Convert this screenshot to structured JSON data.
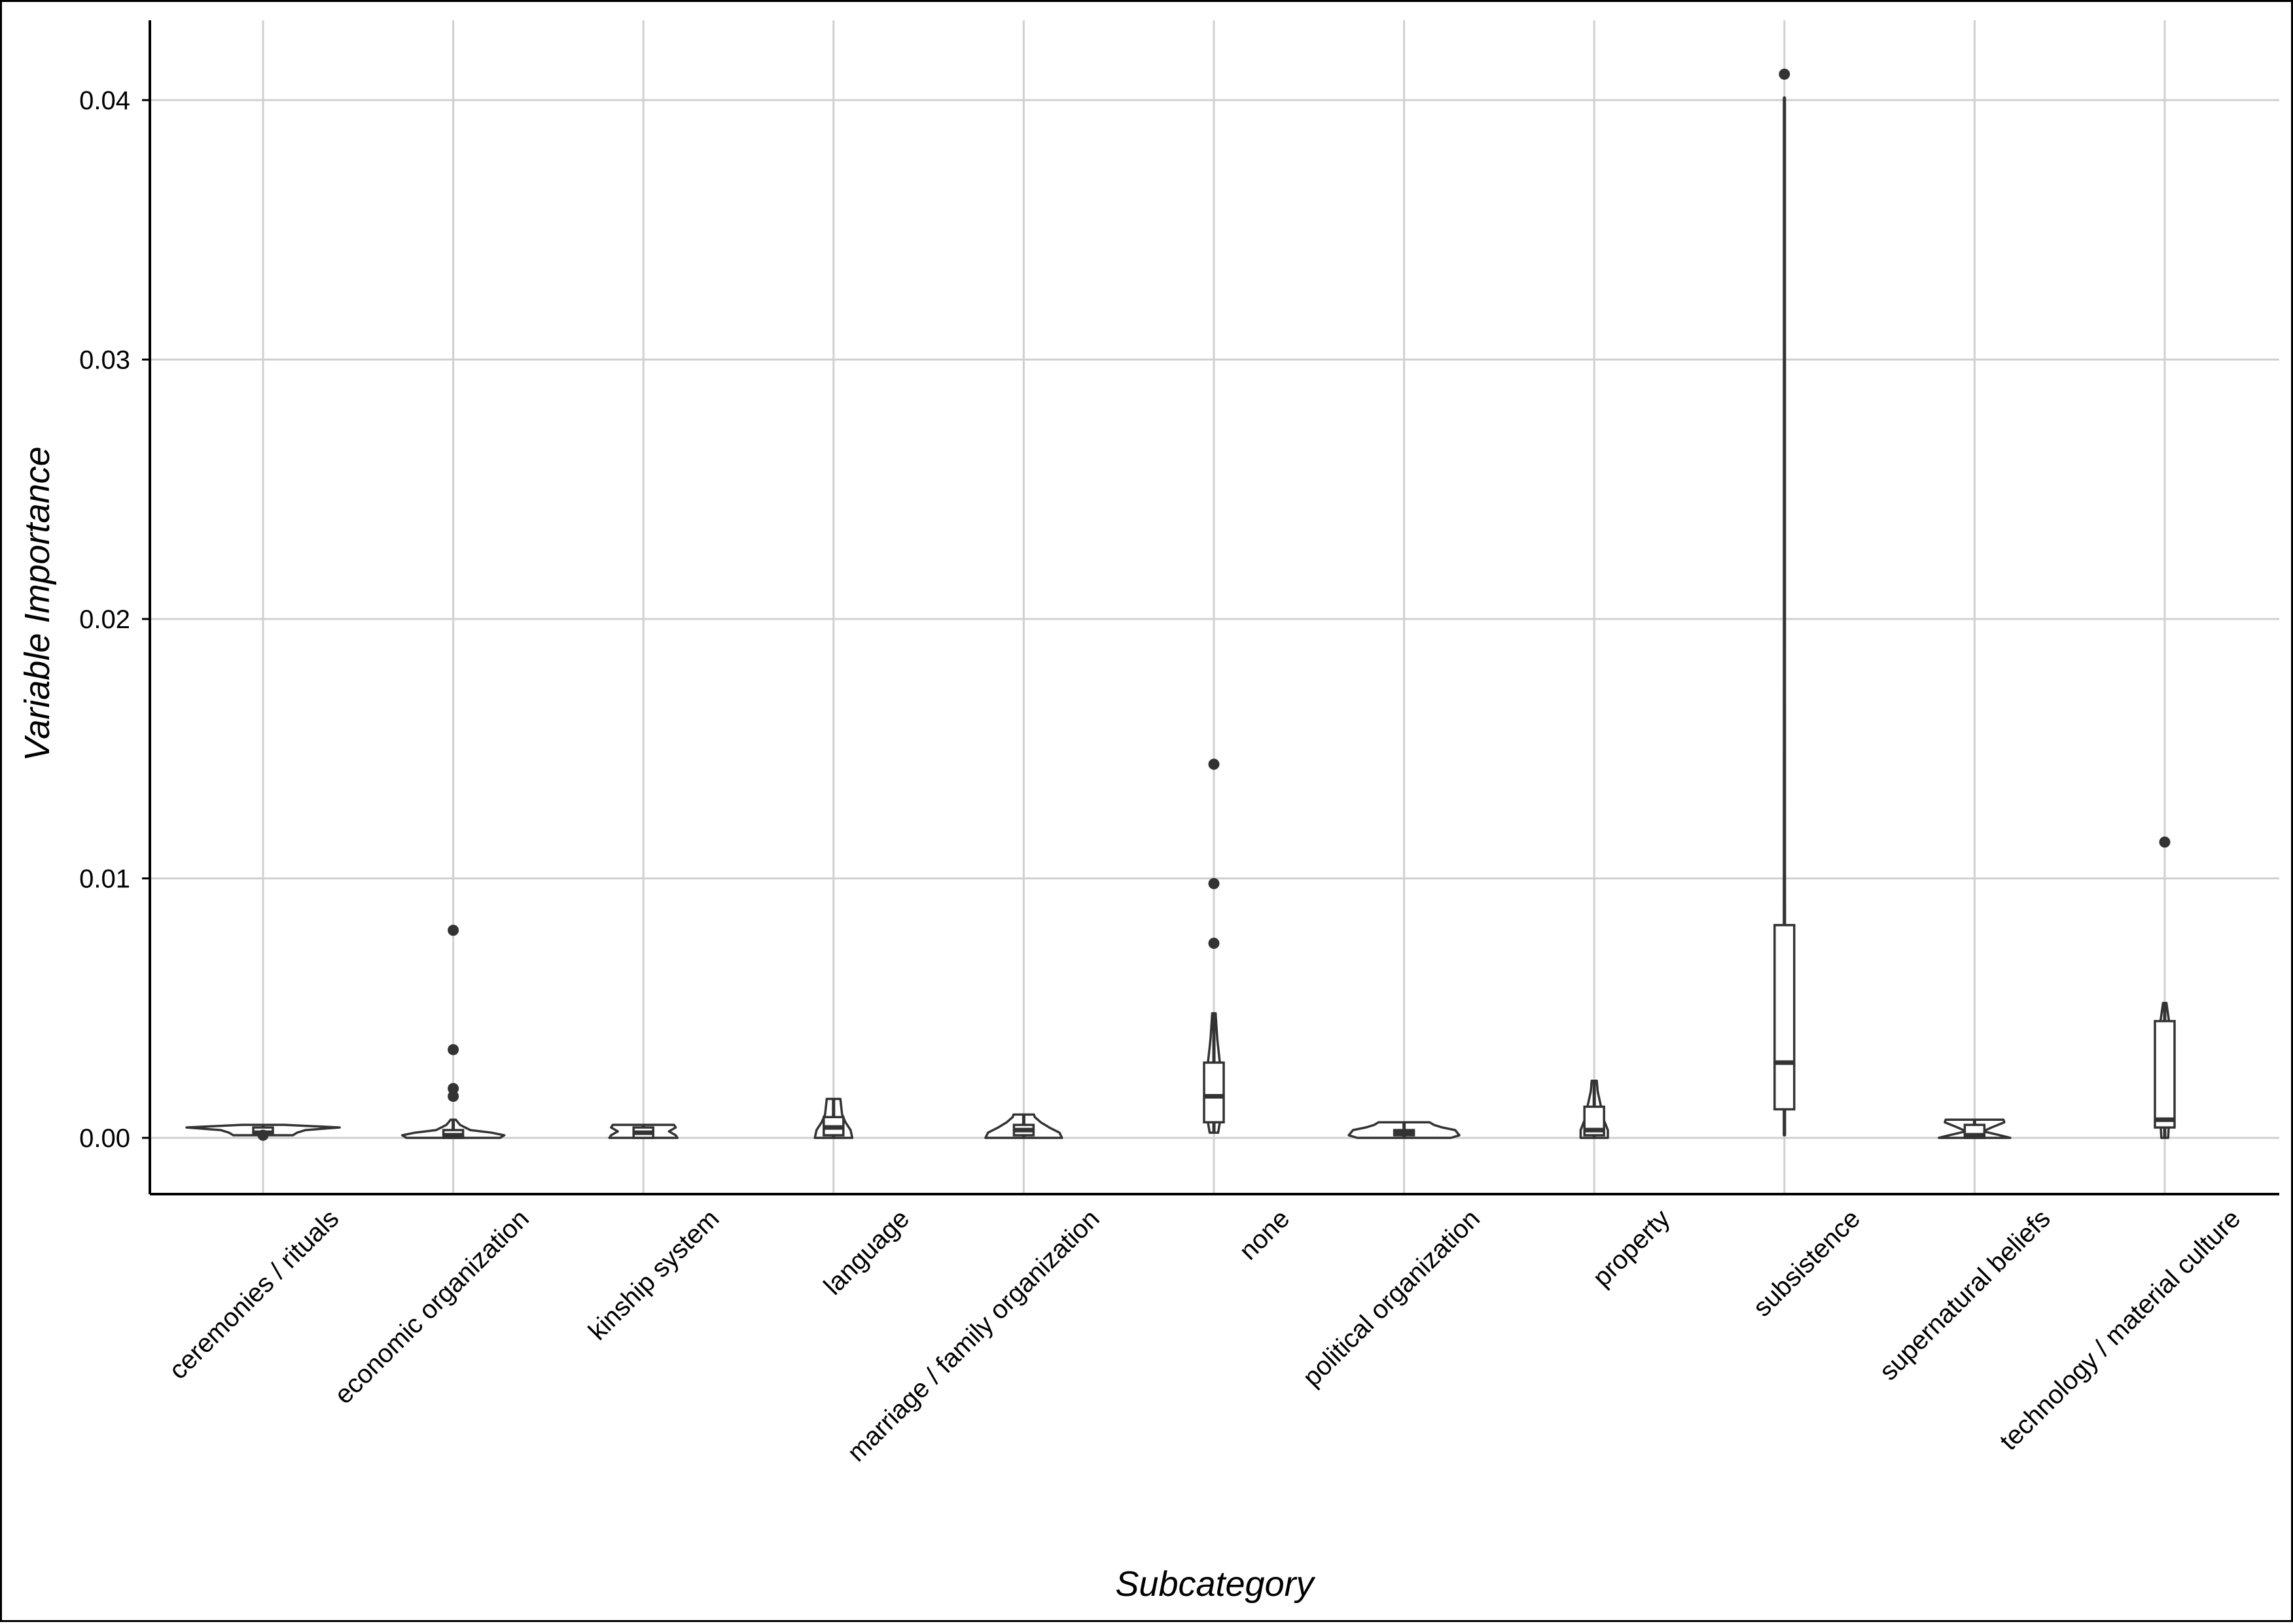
{
  "chart_data": {
    "type": "violin",
    "title": "",
    "xlabel": "Subcategory",
    "ylabel": "Variable Importance",
    "ylim": [
      -0.0021,
      0.0431
    ],
    "yticks": [
      0.0,
      0.01,
      0.02,
      0.03,
      0.04
    ],
    "ytick_labels": [
      "0.00",
      "0.01",
      "0.02",
      "0.03",
      "0.04"
    ],
    "grid": true,
    "legend": "none",
    "colors": {
      "line": "#333333",
      "grid": "#d0d0d0",
      "axis": "#000000",
      "fill": "#ffffff"
    },
    "categories": [
      "ceremonies / rituals",
      "economic organization",
      "kinship system",
      "language",
      "marriage / family organization",
      "none",
      "political organization",
      "property",
      "subsistence",
      "supernatural beliefs",
      "technology / material culture"
    ],
    "series": [
      {
        "category": "ceremonies / rituals",
        "min": 0.0001,
        "q1": 0.00015,
        "median": 0.0002,
        "q3": 0.0004,
        "max": 0.0005,
        "outliers": [
          0.0001
        ],
        "violin": [
          [
            0.0001,
            0.35
          ],
          [
            0.0002,
            0.4
          ],
          [
            0.0003,
            0.5
          ],
          [
            0.0004,
            0.9
          ],
          [
            0.0005,
            0.25
          ]
        ]
      },
      {
        "category": "economic organization",
        "min": 0.0,
        "q1": 0.0,
        "median": 0.0001,
        "q3": 0.0003,
        "max": 0.0007,
        "outliers": [
          0.0016,
          0.0019,
          0.0034,
          0.008
        ],
        "violin": [
          [
            0.0,
            0.55
          ],
          [
            0.0001,
            0.6
          ],
          [
            0.0002,
            0.45
          ],
          [
            0.0003,
            0.2
          ],
          [
            0.0005,
            0.08
          ],
          [
            0.0007,
            0.03
          ]
        ]
      },
      {
        "category": "kinship system",
        "min": 0.0,
        "q1": 0.0,
        "median": 0.0002,
        "q3": 0.0004,
        "max": 0.0005,
        "outliers": [],
        "violin": [
          [
            0.0,
            0.4
          ],
          [
            0.0001,
            0.38
          ],
          [
            0.00025,
            0.3
          ],
          [
            0.0004,
            0.38
          ],
          [
            0.0005,
            0.36
          ]
        ]
      },
      {
        "category": "language",
        "min": 0.0,
        "q1": 0.0001,
        "median": 0.0004,
        "q3": 0.0008,
        "max": 0.0015,
        "outliers": [],
        "violin": [
          [
            0.0,
            0.22
          ],
          [
            0.0003,
            0.2
          ],
          [
            0.0006,
            0.14
          ],
          [
            0.0009,
            0.1
          ],
          [
            0.0012,
            0.09
          ],
          [
            0.0015,
            0.08
          ]
        ]
      },
      {
        "category": "marriage / family organization",
        "min": 0.0,
        "q1": 0.0001,
        "median": 0.0003,
        "q3": 0.0005,
        "max": 0.0009,
        "outliers": [],
        "violin": [
          [
            0.0,
            0.45
          ],
          [
            0.0002,
            0.42
          ],
          [
            0.0004,
            0.3
          ],
          [
            0.0006,
            0.2
          ],
          [
            0.0008,
            0.13
          ],
          [
            0.0009,
            0.12
          ]
        ]
      },
      {
        "category": "none",
        "min": 0.0002,
        "q1": 0.0006,
        "median": 0.0016,
        "q3": 0.0029,
        "max": 0.0048,
        "outliers": [
          0.0075,
          0.0098,
          0.0144
        ],
        "violin": [
          [
            0.0002,
            0.05
          ],
          [
            0.0006,
            0.07
          ],
          [
            0.0012,
            0.09
          ],
          [
            0.002,
            0.09
          ],
          [
            0.0029,
            0.07
          ],
          [
            0.0038,
            0.04
          ],
          [
            0.0048,
            0.02
          ]
        ]
      },
      {
        "category": "political organization",
        "min": 0.0,
        "q1": 0.0001,
        "median": 0.0002,
        "q3": 0.0003,
        "max": 0.0006,
        "outliers": [],
        "violin": [
          [
            0.0,
            0.55
          ],
          [
            0.0001,
            0.65
          ],
          [
            0.0003,
            0.6
          ],
          [
            0.0004,
            0.45
          ],
          [
            0.0005,
            0.35
          ],
          [
            0.0006,
            0.3
          ]
        ]
      },
      {
        "category": "property",
        "min": 0.0,
        "q1": 0.0001,
        "median": 0.0003,
        "q3": 0.0012,
        "max": 0.0022,
        "outliers": [],
        "violin": [
          [
            0.0,
            0.16
          ],
          [
            0.0003,
            0.16
          ],
          [
            0.0008,
            0.1
          ],
          [
            0.0012,
            0.08
          ],
          [
            0.0018,
            0.04
          ],
          [
            0.0022,
            0.03
          ]
        ]
      },
      {
        "category": "subsistence",
        "min": 0.0001,
        "q1": 0.0011,
        "median": 0.0029,
        "q3": 0.0082,
        "max": 0.0401,
        "outliers": [
          0.041
        ],
        "violin": [
          [
            0.0001,
            0.006
          ],
          [
            0.004,
            0.007
          ],
          [
            0.01,
            0.005
          ],
          [
            0.02,
            0.004
          ],
          [
            0.03,
            0.004
          ],
          [
            0.0401,
            0.003
          ]
        ]
      },
      {
        "category": "supernatural beliefs",
        "min": 0.0,
        "q1": 0.0,
        "median": 0.0001,
        "q3": 0.0005,
        "max": 0.0007,
        "outliers": [],
        "violin": [
          [
            0.0,
            0.42
          ],
          [
            0.0001,
            0.3
          ],
          [
            0.00025,
            0.1
          ],
          [
            0.0004,
            0.2
          ],
          [
            0.0006,
            0.35
          ],
          [
            0.0007,
            0.34
          ]
        ]
      },
      {
        "category": "technology / material culture",
        "min": 0.0,
        "q1": 0.0004,
        "median": 0.0007,
        "q3": 0.0045,
        "max": 0.0052,
        "outliers": [
          0.0114
        ],
        "violin": [
          [
            0.0,
            0.04
          ],
          [
            0.0006,
            0.05
          ],
          [
            0.0015,
            0.04
          ],
          [
            0.003,
            0.04
          ],
          [
            0.0045,
            0.05
          ],
          [
            0.0052,
            0.02
          ]
        ]
      }
    ]
  }
}
